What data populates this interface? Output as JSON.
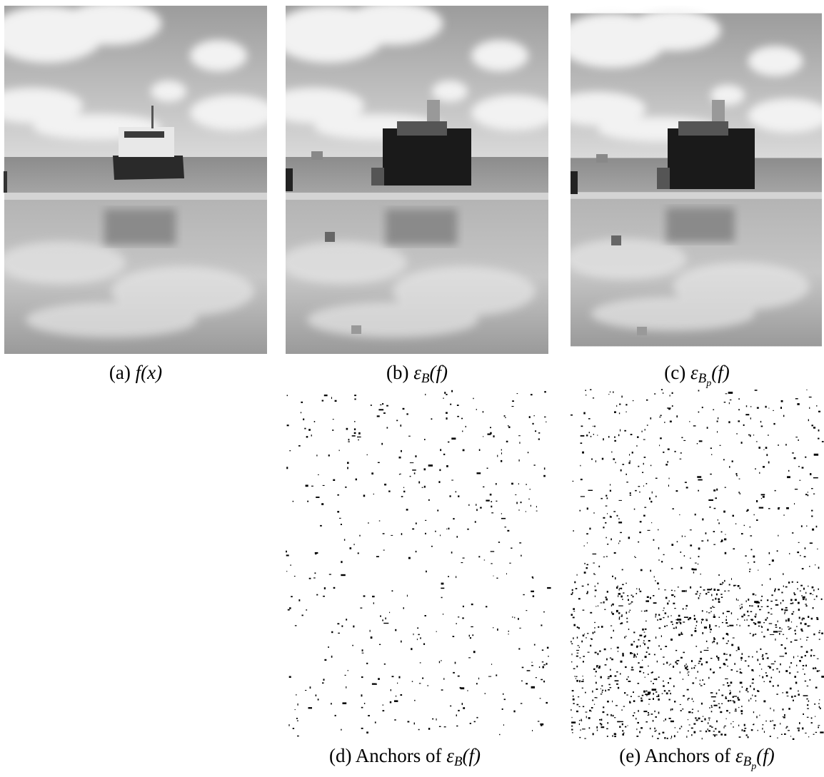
{
  "figures": [
    {
      "label": "(a)",
      "math": "f(x)"
    },
    {
      "label": "(b)",
      "symbol": "ε",
      "sub": "B",
      "tail": "(f)"
    },
    {
      "label": "(c)",
      "symbol": "ε",
      "sub": "B",
      "subsub": "p",
      "tail": "(f)"
    },
    {
      "label": "(d) Anchors of",
      "symbol": "ε",
      "sub": "B",
      "tail": "(f)"
    },
    {
      "label": "(e) Anchors of",
      "symbol": "ε",
      "sub": "B",
      "subsub": "p",
      "tail": "(f)"
    }
  ]
}
